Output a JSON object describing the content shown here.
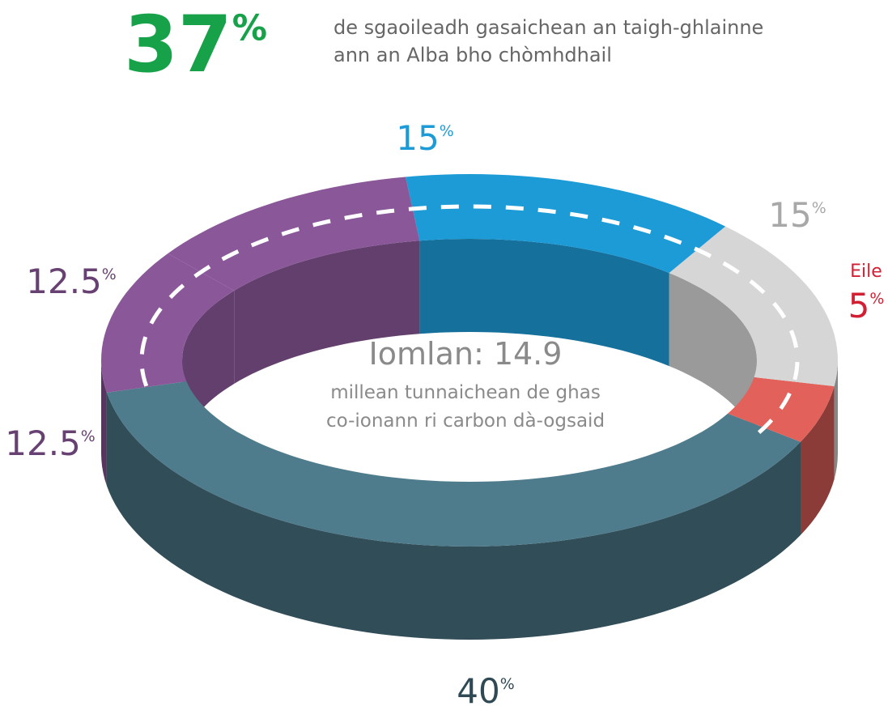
{
  "chart_data": {
    "type": "donut",
    "headline": "37%",
    "headline_text": [
      "de sgaoileadh gasaichean an taigh-ghlainne",
      "ann an Alba bho chòmhdhail"
    ],
    "total_label": "Iomlan: 14.9",
    "total_text": [
      "millean tunnaichean de ghas",
      "co-ionann ri carbon dà-ogsaid"
    ],
    "categories": [
      null,
      "Eile",
      null,
      null,
      null,
      null
    ],
    "values": [
      40,
      5,
      15,
      15,
      12.5,
      12.5
    ],
    "value_labels": [
      "40%",
      "5%",
      "15%",
      "15%",
      "12.5%",
      "12.5%"
    ],
    "colors": [
      "#4f7c8c",
      "#e2615b",
      "#d6d6d6",
      "#1d9bd7",
      "#8a5799",
      "#8a5799"
    ]
  }
}
